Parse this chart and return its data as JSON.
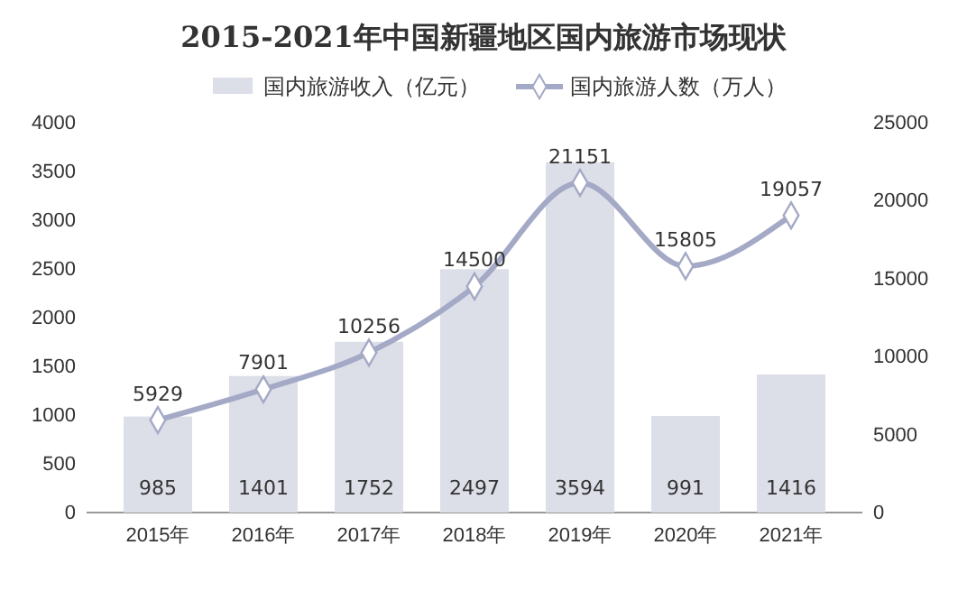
{
  "chart_data": {
    "type": "bar",
    "title": "2015-2021年中国新疆地区国内旅游市场现状",
    "categories": [
      "2015年",
      "2016年",
      "2017年",
      "2018年",
      "2019年",
      "2020年",
      "2021年"
    ],
    "series": [
      {
        "name": "国内旅游收入（亿元）",
        "color": "#dcdee8",
        "values": [
          985,
          1401,
          1752,
          2497,
          3594,
          991,
          1416
        ]
      },
      {
        "name": "国内旅游人数（万人）",
        "type": "line",
        "axis": "y2",
        "color": "#a4a9c6",
        "values": [
          5929,
          7901,
          10256,
          14500,
          21151,
          15805,
          19057
        ]
      }
    ],
    "ylim": [
      0,
      4000
    ],
    "yticks": [
      0,
      500,
      1000,
      1500,
      2000,
      2500,
      3000,
      3500,
      4000
    ],
    "y2lim": [
      0,
      25000
    ],
    "y2ticks": [
      0,
      5000,
      10000,
      15000,
      20000,
      25000
    ],
    "data_labels": true,
    "legend": "top",
    "marker": "diamond",
    "line_style": "solid"
  }
}
